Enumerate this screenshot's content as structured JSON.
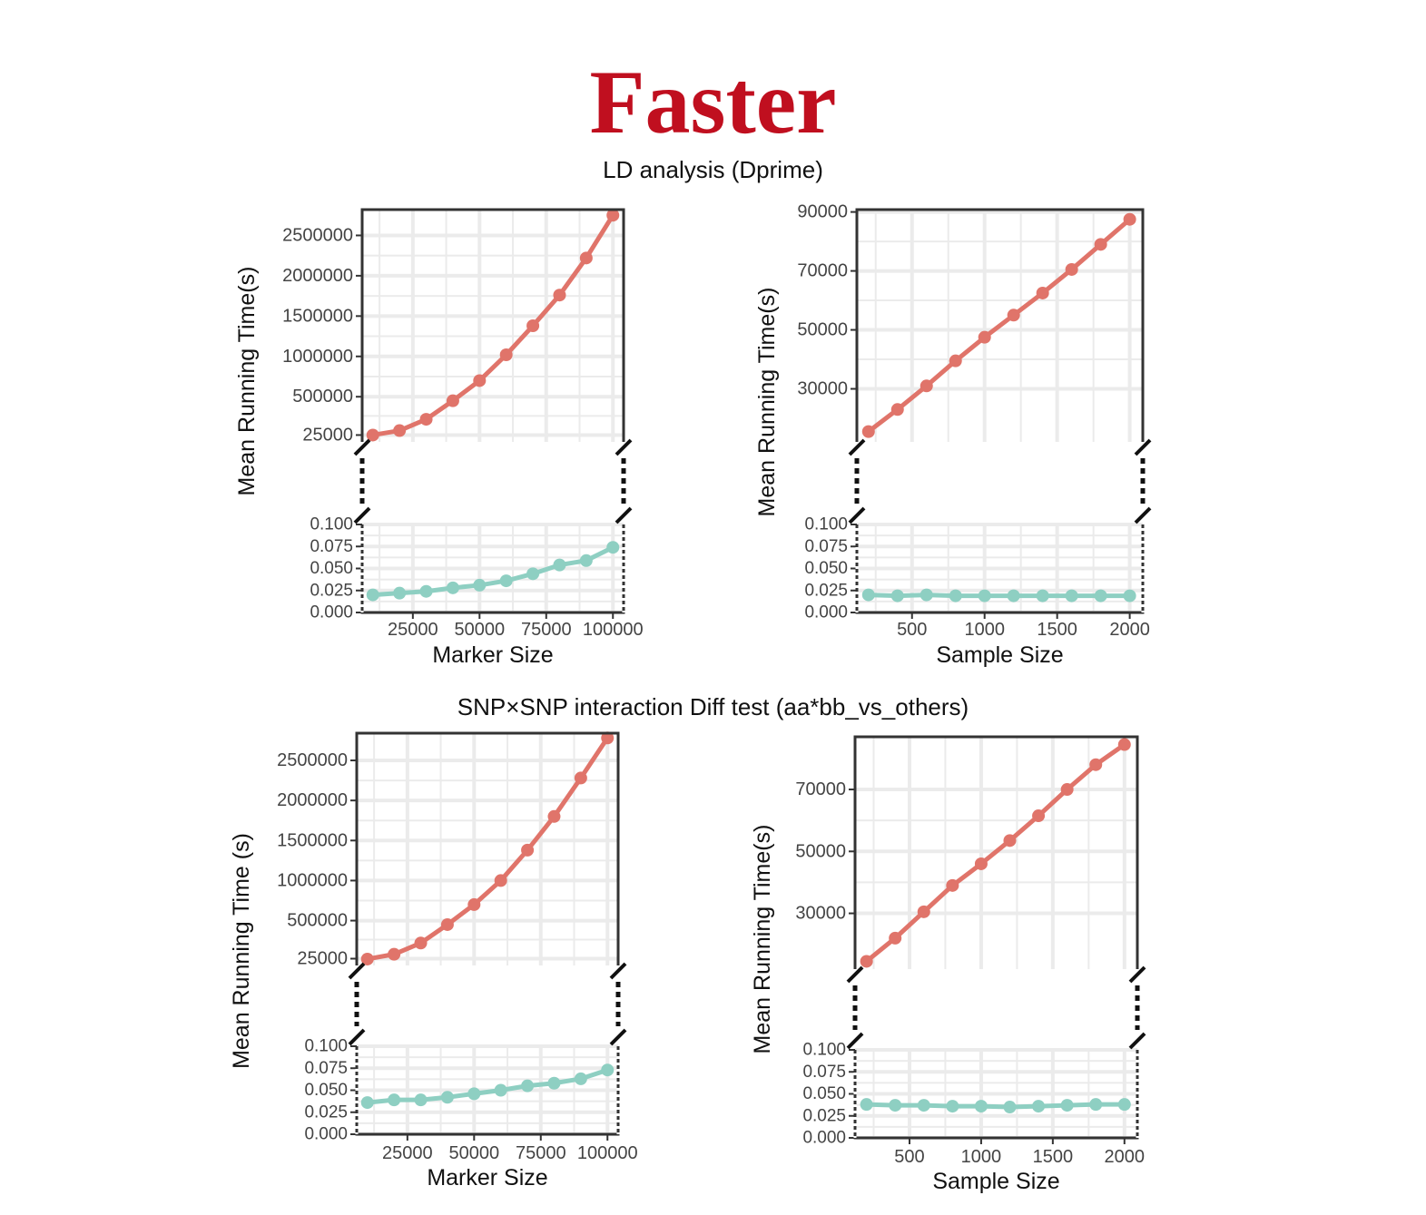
{
  "title": "Faster",
  "colors": {
    "title": "#c00f1f",
    "upper_series": "#e0746a",
    "lower_series": "#8ecfc2",
    "grid": "#ebebeb",
    "frame": "#333333"
  },
  "chart_data": [
    {
      "type": "line",
      "section_title": "LD analysis (Dprime)",
      "xlabel": "Marker Size",
      "ylabel": "Mean Running Time(s)",
      "x": [
        10000,
        20000,
        30000,
        40000,
        50000,
        60000,
        70000,
        80000,
        90000,
        100000
      ],
      "xlim": [
        6000,
        104000
      ],
      "xticks": [
        25000,
        50000,
        75000,
        100000
      ],
      "xtick_labels": [
        "25000",
        "50000",
        "75000",
        "100000"
      ],
      "upper": {
        "ylim": [
          -60000,
          2820000
        ],
        "yticks": [
          25000,
          500000,
          1000000,
          1500000,
          2000000,
          2500000
        ],
        "ytick_labels": [
          "25000",
          "500000",
          "1000000",
          "1500000",
          "2000000",
          "2500000"
        ],
        "values": [
          25000,
          80000,
          220000,
          450000,
          700000,
          1020000,
          1380000,
          1760000,
          2220000,
          2750000
        ]
      },
      "lower": {
        "ylim": [
          0,
          0.1
        ],
        "yticks": [
          0,
          0.025,
          0.05,
          0.075,
          0.1
        ],
        "ytick_labels": [
          "0.000",
          "0.025",
          "0.050",
          "0.075",
          "0.100"
        ],
        "values": [
          0.02,
          0.022,
          0.024,
          0.028,
          0.031,
          0.036,
          0.044,
          0.054,
          0.059,
          0.074
        ]
      }
    },
    {
      "type": "line",
      "section_title": "LD analysis (Dprime)",
      "xlabel": "Sample Size",
      "ylabel": "Mean Running Time(s)",
      "x": [
        200,
        400,
        600,
        800,
        1000,
        1200,
        1400,
        1600,
        1800,
        2000
      ],
      "xlim": [
        120,
        2090
      ],
      "xticks": [
        500,
        1000,
        1500,
        2000
      ],
      "xtick_labels": [
        "500",
        "1000",
        "1500",
        "2000"
      ],
      "upper": {
        "ylim": [
          12000,
          90800
        ],
        "yticks": [
          30000,
          50000,
          70000,
          90000
        ],
        "ytick_labels": [
          "30000",
          "50000",
          "70000",
          "90000"
        ],
        "values": [
          15500,
          23000,
          31000,
          39500,
          47500,
          55000,
          62500,
          70500,
          79000,
          87500
        ]
      },
      "lower": {
        "ylim": [
          0,
          0.1
        ],
        "yticks": [
          0,
          0.025,
          0.05,
          0.075,
          0.1
        ],
        "ytick_labels": [
          "0.000",
          "0.025",
          "0.050",
          "0.075",
          "0.100"
        ],
        "values": [
          0.02,
          0.019,
          0.02,
          0.019,
          0.019,
          0.019,
          0.019,
          0.019,
          0.019,
          0.019
        ]
      }
    },
    {
      "type": "line",
      "section_title": "SNP×SNP interaction Diff test (aa*bb_vs_others)",
      "xlabel": "Marker Size",
      "ylabel": "Mean Running Time (s)",
      "x": [
        10000,
        20000,
        30000,
        40000,
        50000,
        60000,
        70000,
        80000,
        90000,
        100000
      ],
      "xlim": [
        6000,
        104000
      ],
      "xticks": [
        25000,
        50000,
        75000,
        100000
      ],
      "xtick_labels": [
        "25000",
        "50000",
        "75000",
        "100000"
      ],
      "upper": {
        "ylim": [
          -60000,
          2840000
        ],
        "yticks": [
          25000,
          500000,
          1000000,
          1500000,
          2000000,
          2500000
        ],
        "ytick_labels": [
          "25000",
          "500000",
          "1000000",
          "1500000",
          "2000000",
          "2500000"
        ],
        "values": [
          20000,
          80000,
          220000,
          450000,
          700000,
          1000000,
          1380000,
          1800000,
          2280000,
          2780000
        ]
      },
      "lower": {
        "ylim": [
          0,
          0.1
        ],
        "yticks": [
          0,
          0.025,
          0.05,
          0.075,
          0.1
        ],
        "ytick_labels": [
          "0.000",
          "0.025",
          "0.050",
          "0.075",
          "0.100"
        ],
        "values": [
          0.036,
          0.039,
          0.039,
          0.042,
          0.046,
          0.05,
          0.055,
          0.058,
          0.063,
          0.073
        ]
      }
    },
    {
      "type": "line",
      "section_title": "SNP×SNP interaction Diff test (aa*bb_vs_others)",
      "xlabel": "Sample Size",
      "ylabel": "Mean Running Time(s)",
      "x": [
        200,
        400,
        600,
        800,
        1000,
        1200,
        1400,
        1600,
        1800,
        2000
      ],
      "xlim": [
        120,
        2090
      ],
      "xticks": [
        500,
        1000,
        1500,
        2000
      ],
      "xtick_labels": [
        "500",
        "1000",
        "1500",
        "2000"
      ],
      "upper": {
        "ylim": [
          12000,
          87000
        ],
        "yticks": [
          30000,
          50000,
          70000
        ],
        "ytick_labels": [
          "30000",
          "50000",
          "70000"
        ],
        "values": [
          14500,
          22000,
          30500,
          39000,
          46000,
          53500,
          61500,
          70000,
          78000,
          84500
        ]
      },
      "lower": {
        "ylim": [
          0,
          0.1
        ],
        "yticks": [
          0,
          0.025,
          0.05,
          0.075,
          0.1
        ],
        "ytick_labels": [
          "0.000",
          "0.025",
          "0.050",
          "0.075",
          "0.100"
        ],
        "values": [
          0.038,
          0.037,
          0.037,
          0.036,
          0.036,
          0.035,
          0.036,
          0.037,
          0.038,
          0.038
        ]
      }
    }
  ]
}
